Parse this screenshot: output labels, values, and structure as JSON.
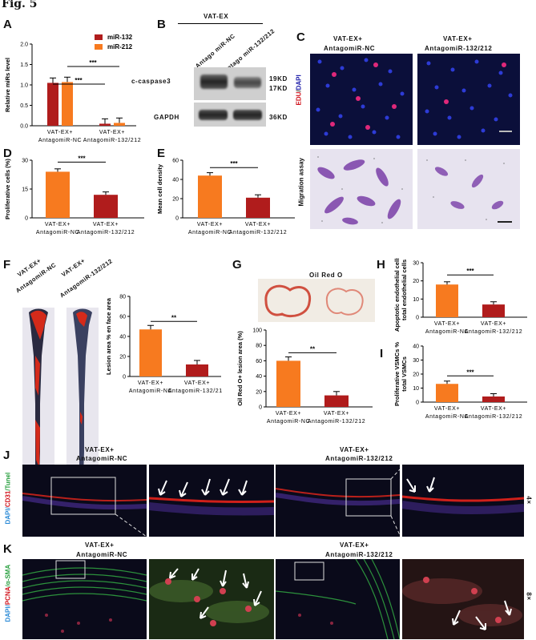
{
  "figure_label": "Fig. 5",
  "panels": {
    "A": "A",
    "B": "B",
    "C": "C",
    "D": "D",
    "E": "E",
    "F": "F",
    "G": "G",
    "H": "H",
    "I": "I",
    "J": "J",
    "K": "K"
  },
  "groups": {
    "nc_top": "VAT-EX+",
    "nc_bottom": "AntagomiR-NC",
    "ko_top": "VAT-EX+",
    "ko_bottom": "AntagomiR-132/212"
  },
  "colors": {
    "orange": "#f77a1f",
    "darkred": "#b01c1c"
  },
  "western": {
    "header": "VAT-EX",
    "lane1": "Antago miR-NC",
    "lane2": "Antago miR-132/212",
    "row1_label": "c-caspase3",
    "row2_label": "GAPDH",
    "kd_19": "19KD",
    "kd_17": "17KD",
    "kd_36": "36KD"
  },
  "panelC": {
    "col1_top": "VAT-EX+",
    "col1_bottom": "AntagomiR-NC",
    "col2_top": "VAT-EX+",
    "col2_bottom": "AntagomiR-132/212",
    "edu": "EDU",
    "slash": "/",
    "dapi": "DAPI",
    "migration": "Migration assay"
  },
  "panelF": {
    "col1_top": "VAT-EX+",
    "col1_bottom": "AntagomiR-NC",
    "col2_top": "VAT-EX+",
    "col2_bottom": "AntagomiR-132/212"
  },
  "panelG": {
    "title": "Oil Red O"
  },
  "panelJ": {
    "col1_top": "VAT-EX+",
    "col1_bottom": "AntagomiR-NC",
    "col2_top": "VAT-EX+",
    "col2_bottom": "AntagomiR-132/212",
    "side_dapi": "DAPI/",
    "side_cd31": "CD31",
    "side_tunel": "/Tunel",
    "mag": "4×"
  },
  "panelK": {
    "col1_top": "VAT-EX+",
    "col1_bottom": "AntagomiR-NC",
    "col2_top": "VAT-EX+",
    "col2_bottom": "AntagomiR-132/212",
    "side_dapi": "DAPI/",
    "side_pcna": "PCNA",
    "side_sma": "/α-SMA",
    "mag": "8×"
  },
  "chart_data": [
    {
      "panel": "A",
      "type": "bar",
      "ylabel": "Relative miRs level",
      "ylim": [
        0,
        2.0
      ],
      "yticks": [
        "0.0",
        "0.5",
        "1.0",
        "1.5",
        "2.0"
      ],
      "categories": [
        "VAT-EX+ AntagomiR-NC",
        "VAT-EX+ AntagomiR-132/212"
      ],
      "series": [
        {
          "name": "miR-132",
          "values": [
            1.05,
            0.05
          ]
        },
        {
          "name": "miR-212",
          "values": [
            1.07,
            0.07
          ]
        }
      ],
      "significance": [
        "***",
        "***"
      ]
    },
    {
      "panel": "D",
      "type": "bar",
      "ylabel": "Proliferative cells (%)",
      "ylim": [
        0,
        30
      ],
      "yticks": [
        "0",
        "15",
        "30"
      ],
      "categories": [
        "VAT-EX+ AntagomiR-NC",
        "VAT-EX+ AntagomiR-132/212"
      ],
      "values": [
        24,
        12
      ],
      "significance": "***"
    },
    {
      "panel": "E",
      "type": "bar",
      "ylabel": "Mean cell density",
      "ylim": [
        0,
        60
      ],
      "yticks": [
        "0",
        "20",
        "40",
        "60"
      ],
      "categories": [
        "VAT-EX+ AntagomiR-NC",
        "VAT-EX+ AntagomiR-132/212"
      ],
      "values": [
        44,
        21
      ],
      "significance": "***"
    },
    {
      "panel": "F",
      "type": "bar",
      "ylabel": "Lesion area % en face area",
      "ylim": [
        0,
        80
      ],
      "yticks": [
        "0",
        "20",
        "40",
        "60",
        "80"
      ],
      "categories": [
        "VAT-EX+ AntagomiR-NC",
        "VAT-EX+ AntagomiR-132/212"
      ],
      "values": [
        47,
        12
      ],
      "significance": "**"
    },
    {
      "panel": "G",
      "type": "bar",
      "ylabel": "Oil Red O+ lesion area (%)",
      "ylim": [
        0,
        100
      ],
      "yticks": [
        "0",
        "20",
        "40",
        "60",
        "80",
        "100"
      ],
      "categories": [
        "VAT-EX+ AntagomiR-NC",
        "VAT-EX+ AntagomiR-132/212"
      ],
      "values": [
        60,
        15
      ],
      "significance": "**"
    },
    {
      "panel": "H",
      "type": "bar",
      "ylabel": "Apoptotic endothelial cells % total endothelial cells",
      "ylim": [
        0,
        30
      ],
      "yticks": [
        "0",
        "10",
        "20",
        "30"
      ],
      "categories": [
        "VAT-EX+ AntagomiR-NC",
        "VAT-EX+ AntagomiR-132/212"
      ],
      "values": [
        18,
        7
      ],
      "significance": "***"
    },
    {
      "panel": "I",
      "type": "bar",
      "ylabel": "Proliferative VSMCs % total VSMCs",
      "ylim": [
        0,
        40
      ],
      "yticks": [
        "0",
        "10",
        "20",
        "30",
        "40"
      ],
      "categories": [
        "VAT-EX+ AntagomiR-NC",
        "VAT-EX+ AntagomiR-132/212"
      ],
      "values": [
        13,
        4
      ],
      "significance": "***"
    }
  ]
}
